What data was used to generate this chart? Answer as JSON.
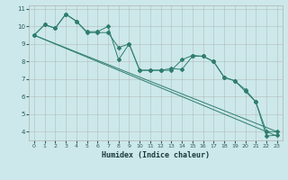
{
  "xlabel": "Humidex (Indice chaleur)",
  "bg_color": "#cce8ea",
  "grid_color": "#b0b0b0",
  "line_color": "#2e7d6e",
  "xlim": [
    -0.5,
    23.5
  ],
  "ylim": [
    3.5,
    11.2
  ],
  "yticks": [
    4,
    5,
    6,
    7,
    8,
    9,
    10,
    11
  ],
  "xticks": [
    0,
    1,
    2,
    3,
    4,
    5,
    6,
    7,
    8,
    9,
    10,
    11,
    12,
    13,
    14,
    15,
    16,
    17,
    18,
    19,
    20,
    21,
    22,
    23
  ],
  "series1_x": [
    0,
    1,
    2,
    3,
    4,
    5,
    6,
    7,
    8,
    9,
    10,
    11,
    12,
    13,
    14,
    15,
    16,
    17,
    18,
    19,
    20,
    21,
    22,
    23
  ],
  "series1_y": [
    9.5,
    10.1,
    9.9,
    10.7,
    10.3,
    9.7,
    9.7,
    10.0,
    8.1,
    9.0,
    7.5,
    7.5,
    7.5,
    7.5,
    8.1,
    8.35,
    8.3,
    8.0,
    7.1,
    6.9,
    6.4,
    5.7,
    3.75,
    3.8
  ],
  "series2_x": [
    0,
    1,
    2,
    3,
    4,
    5,
    6,
    7,
    8,
    9,
    10,
    11,
    12,
    13,
    14,
    15,
    16,
    17,
    18,
    19,
    20,
    21,
    22,
    23
  ],
  "series2_y": [
    9.5,
    10.1,
    9.9,
    10.7,
    10.3,
    9.65,
    9.65,
    9.65,
    8.8,
    9.0,
    7.5,
    7.5,
    7.5,
    7.6,
    7.55,
    8.3,
    8.3,
    8.0,
    7.1,
    6.9,
    6.3,
    5.7,
    4.0,
    4.0
  ],
  "trend1_x": [
    0,
    23
  ],
  "trend1_y": [
    9.5,
    3.75
  ],
  "trend2_x": [
    0,
    23
  ],
  "trend2_y": [
    9.5,
    4.0
  ]
}
